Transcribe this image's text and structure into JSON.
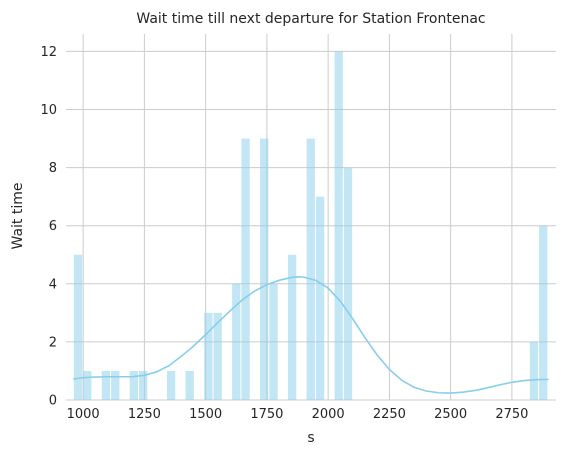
{
  "chart_data": {
    "type": "bar",
    "title": "Wait time till next departure for Station Frontenac",
    "xlabel": "s",
    "ylabel": "Wait time",
    "xlim": [
      930,
      2930
    ],
    "ylim": [
      0,
      12.6
    ],
    "x_ticks": [
      1000,
      1250,
      1500,
      1750,
      2000,
      2250,
      2500,
      2750
    ],
    "y_ticks": [
      0,
      2,
      4,
      6,
      8,
      10,
      12
    ],
    "grid": true,
    "bar_width": 38,
    "bars": [
      {
        "x": 979,
        "value": 5
      },
      {
        "x": 1017,
        "value": 1
      },
      {
        "x": 1093,
        "value": 1
      },
      {
        "x": 1131,
        "value": 1
      },
      {
        "x": 1207,
        "value": 1
      },
      {
        "x": 1245,
        "value": 1
      },
      {
        "x": 1359,
        "value": 1
      },
      {
        "x": 1435,
        "value": 1
      },
      {
        "x": 1511,
        "value": 3
      },
      {
        "x": 1549,
        "value": 3
      },
      {
        "x": 1625,
        "value": 4
      },
      {
        "x": 1663,
        "value": 9
      },
      {
        "x": 1739,
        "value": 9
      },
      {
        "x": 1777,
        "value": 4
      },
      {
        "x": 1853,
        "value": 5
      },
      {
        "x": 1929,
        "value": 9
      },
      {
        "x": 1967,
        "value": 7
      },
      {
        "x": 2043,
        "value": 12
      },
      {
        "x": 2081,
        "value": 8
      },
      {
        "x": 2840,
        "value": 2
      },
      {
        "x": 2878,
        "value": 6
      }
    ],
    "kde": [
      [
        960,
        0.72
      ],
      [
        1000,
        0.77
      ],
      [
        1050,
        0.79
      ],
      [
        1100,
        0.8
      ],
      [
        1150,
        0.8
      ],
      [
        1200,
        0.8
      ],
      [
        1250,
        0.85
      ],
      [
        1300,
        0.97
      ],
      [
        1350,
        1.18
      ],
      [
        1400,
        1.5
      ],
      [
        1450,
        1.85
      ],
      [
        1500,
        2.25
      ],
      [
        1550,
        2.67
      ],
      [
        1600,
        3.07
      ],
      [
        1650,
        3.45
      ],
      [
        1700,
        3.75
      ],
      [
        1750,
        3.97
      ],
      [
        1800,
        4.12
      ],
      [
        1850,
        4.22
      ],
      [
        1880,
        4.24
      ],
      [
        1900,
        4.23
      ],
      [
        1950,
        4.12
      ],
      [
        2000,
        3.85
      ],
      [
        2050,
        3.4
      ],
      [
        2100,
        2.8
      ],
      [
        2150,
        2.15
      ],
      [
        2200,
        1.55
      ],
      [
        2250,
        1.05
      ],
      [
        2300,
        0.68
      ],
      [
        2350,
        0.44
      ],
      [
        2400,
        0.31
      ],
      [
        2450,
        0.25
      ],
      [
        2500,
        0.24
      ],
      [
        2550,
        0.27
      ],
      [
        2600,
        0.33
      ],
      [
        2650,
        0.42
      ],
      [
        2700,
        0.52
      ],
      [
        2750,
        0.61
      ],
      [
        2800,
        0.67
      ],
      [
        2850,
        0.7
      ],
      [
        2900,
        0.71
      ]
    ],
    "colors": {
      "bar": "#87ceeb",
      "kde": "#87ceeb",
      "grid": "#cccccc"
    }
  }
}
